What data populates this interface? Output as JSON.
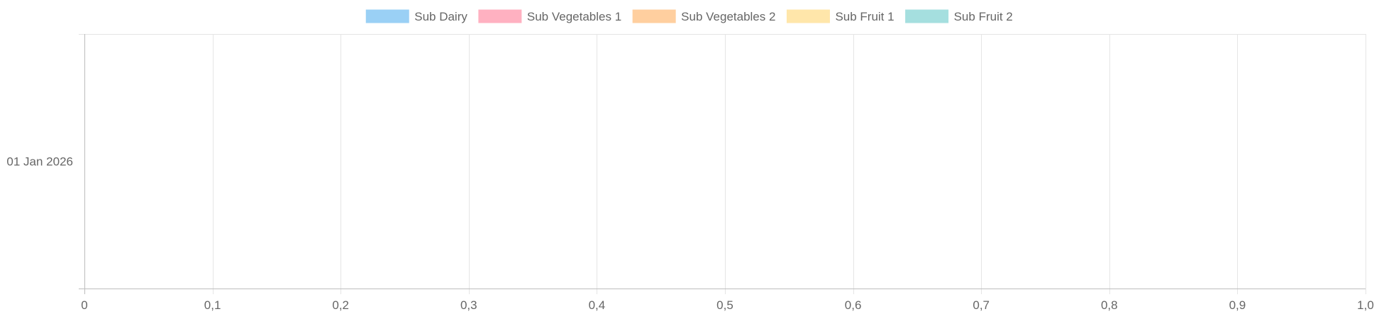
{
  "chart_data": {
    "type": "bar",
    "orientation": "horizontal",
    "stacked": true,
    "categories": [
      "01 Jan 2026"
    ],
    "series": [
      {
        "name": "Sub Dairy",
        "values": [
          0
        ],
        "color": "#9ad0f5"
      },
      {
        "name": "Sub Vegetables 1",
        "values": [
          0
        ],
        "color": "#ffb1c1"
      },
      {
        "name": "Sub Vegetables 2",
        "values": [
          0
        ],
        "color": "#ffcf9f"
      },
      {
        "name": "Sub Fruit 1",
        "values": [
          0
        ],
        "color": "#ffe6aa"
      },
      {
        "name": "Sub Fruit 2",
        "values": [
          0
        ],
        "color": "#a5dfdf"
      }
    ],
    "xlim": [
      0,
      1.0
    ],
    "x_ticks": [
      "0",
      "0,1",
      "0,2",
      "0,3",
      "0,4",
      "0,5",
      "0,6",
      "0,7",
      "0,8",
      "0,9",
      "1,0"
    ],
    "x_tick_values": [
      0,
      0.1,
      0.2,
      0.3,
      0.4,
      0.5,
      0.6,
      0.7,
      0.8,
      0.9,
      1.0
    ],
    "legend_position": "top",
    "grid": true,
    "grid_color": "#e5e5e5",
    "axis_color": "#bdbdbd",
    "text_color": "#666666"
  }
}
